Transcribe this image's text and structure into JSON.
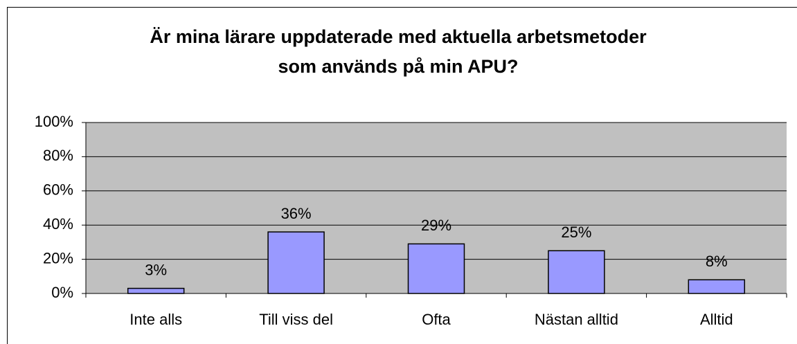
{
  "chart_data": {
    "type": "bar",
    "title": [
      "Är mina lärare uppdaterade med aktuella arbetsmetoder",
      "som används på min APU?"
    ],
    "categories": [
      "Inte alls",
      "Till viss del",
      "Ofta",
      "Nästan alltid",
      "Alltid"
    ],
    "values": [
      3,
      36,
      29,
      25,
      8
    ],
    "value_labels": [
      "3%",
      "36%",
      "29%",
      "25%",
      "8%"
    ],
    "color": "#9999ff",
    "ylim": [
      0,
      100
    ],
    "yticks": [
      {
        "value": 0,
        "label": "0%"
      },
      {
        "value": 20,
        "label": "20%"
      },
      {
        "value": 40,
        "label": "40%"
      },
      {
        "value": 60,
        "label": "60%"
      },
      {
        "value": 80,
        "label": "80%"
      },
      {
        "value": 100,
        "label": "100%"
      }
    ],
    "grid": true
  }
}
